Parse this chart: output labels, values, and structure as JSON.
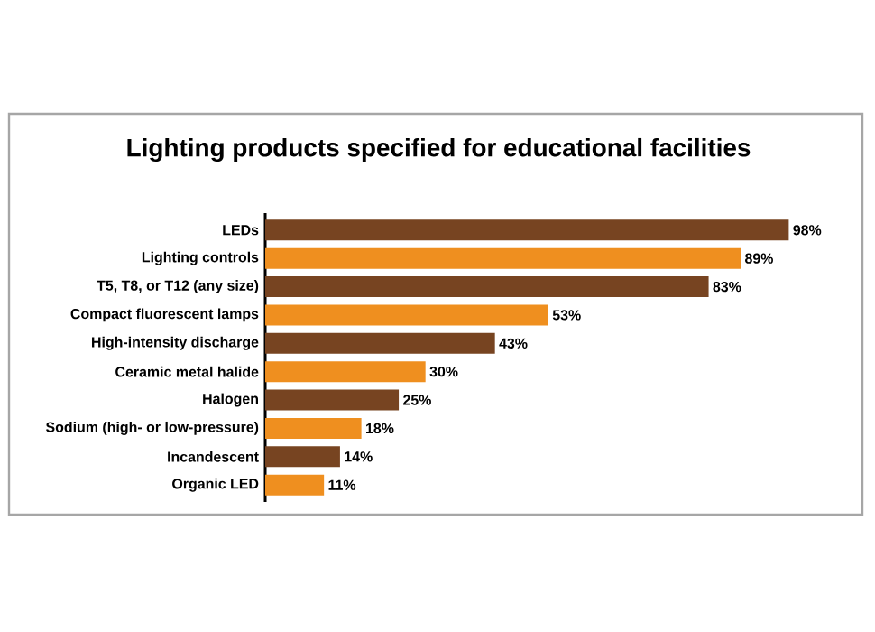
{
  "chart_data": {
    "type": "bar",
    "orientation": "horizontal",
    "title": "Lighting products specified for educational facilities",
    "categories": [
      "LEDs",
      "Lighting controls",
      "T5, T8, or T12 (any size)",
      "Compact fluorescent lamps",
      "High-intensity discharge",
      "Ceramic metal halide",
      "Halogen",
      "Sodium (high- or low-pressure)",
      "Incandescent",
      "Organic LED"
    ],
    "values": [
      98,
      89,
      83,
      53,
      43,
      30,
      25,
      18,
      14,
      11
    ],
    "colors": [
      "#774421",
      "#ef8f1f",
      "#774421",
      "#ef8f1f",
      "#774421",
      "#ef8f1f",
      "#774421",
      "#ef8f1f",
      "#774421",
      "#ef8f1f"
    ],
    "value_labels": [
      "98%",
      "89%",
      "83%",
      "53%",
      "43%",
      "30%",
      "25%",
      "18%",
      "14%",
      "11%"
    ],
    "tick_labels": "y"
  }
}
